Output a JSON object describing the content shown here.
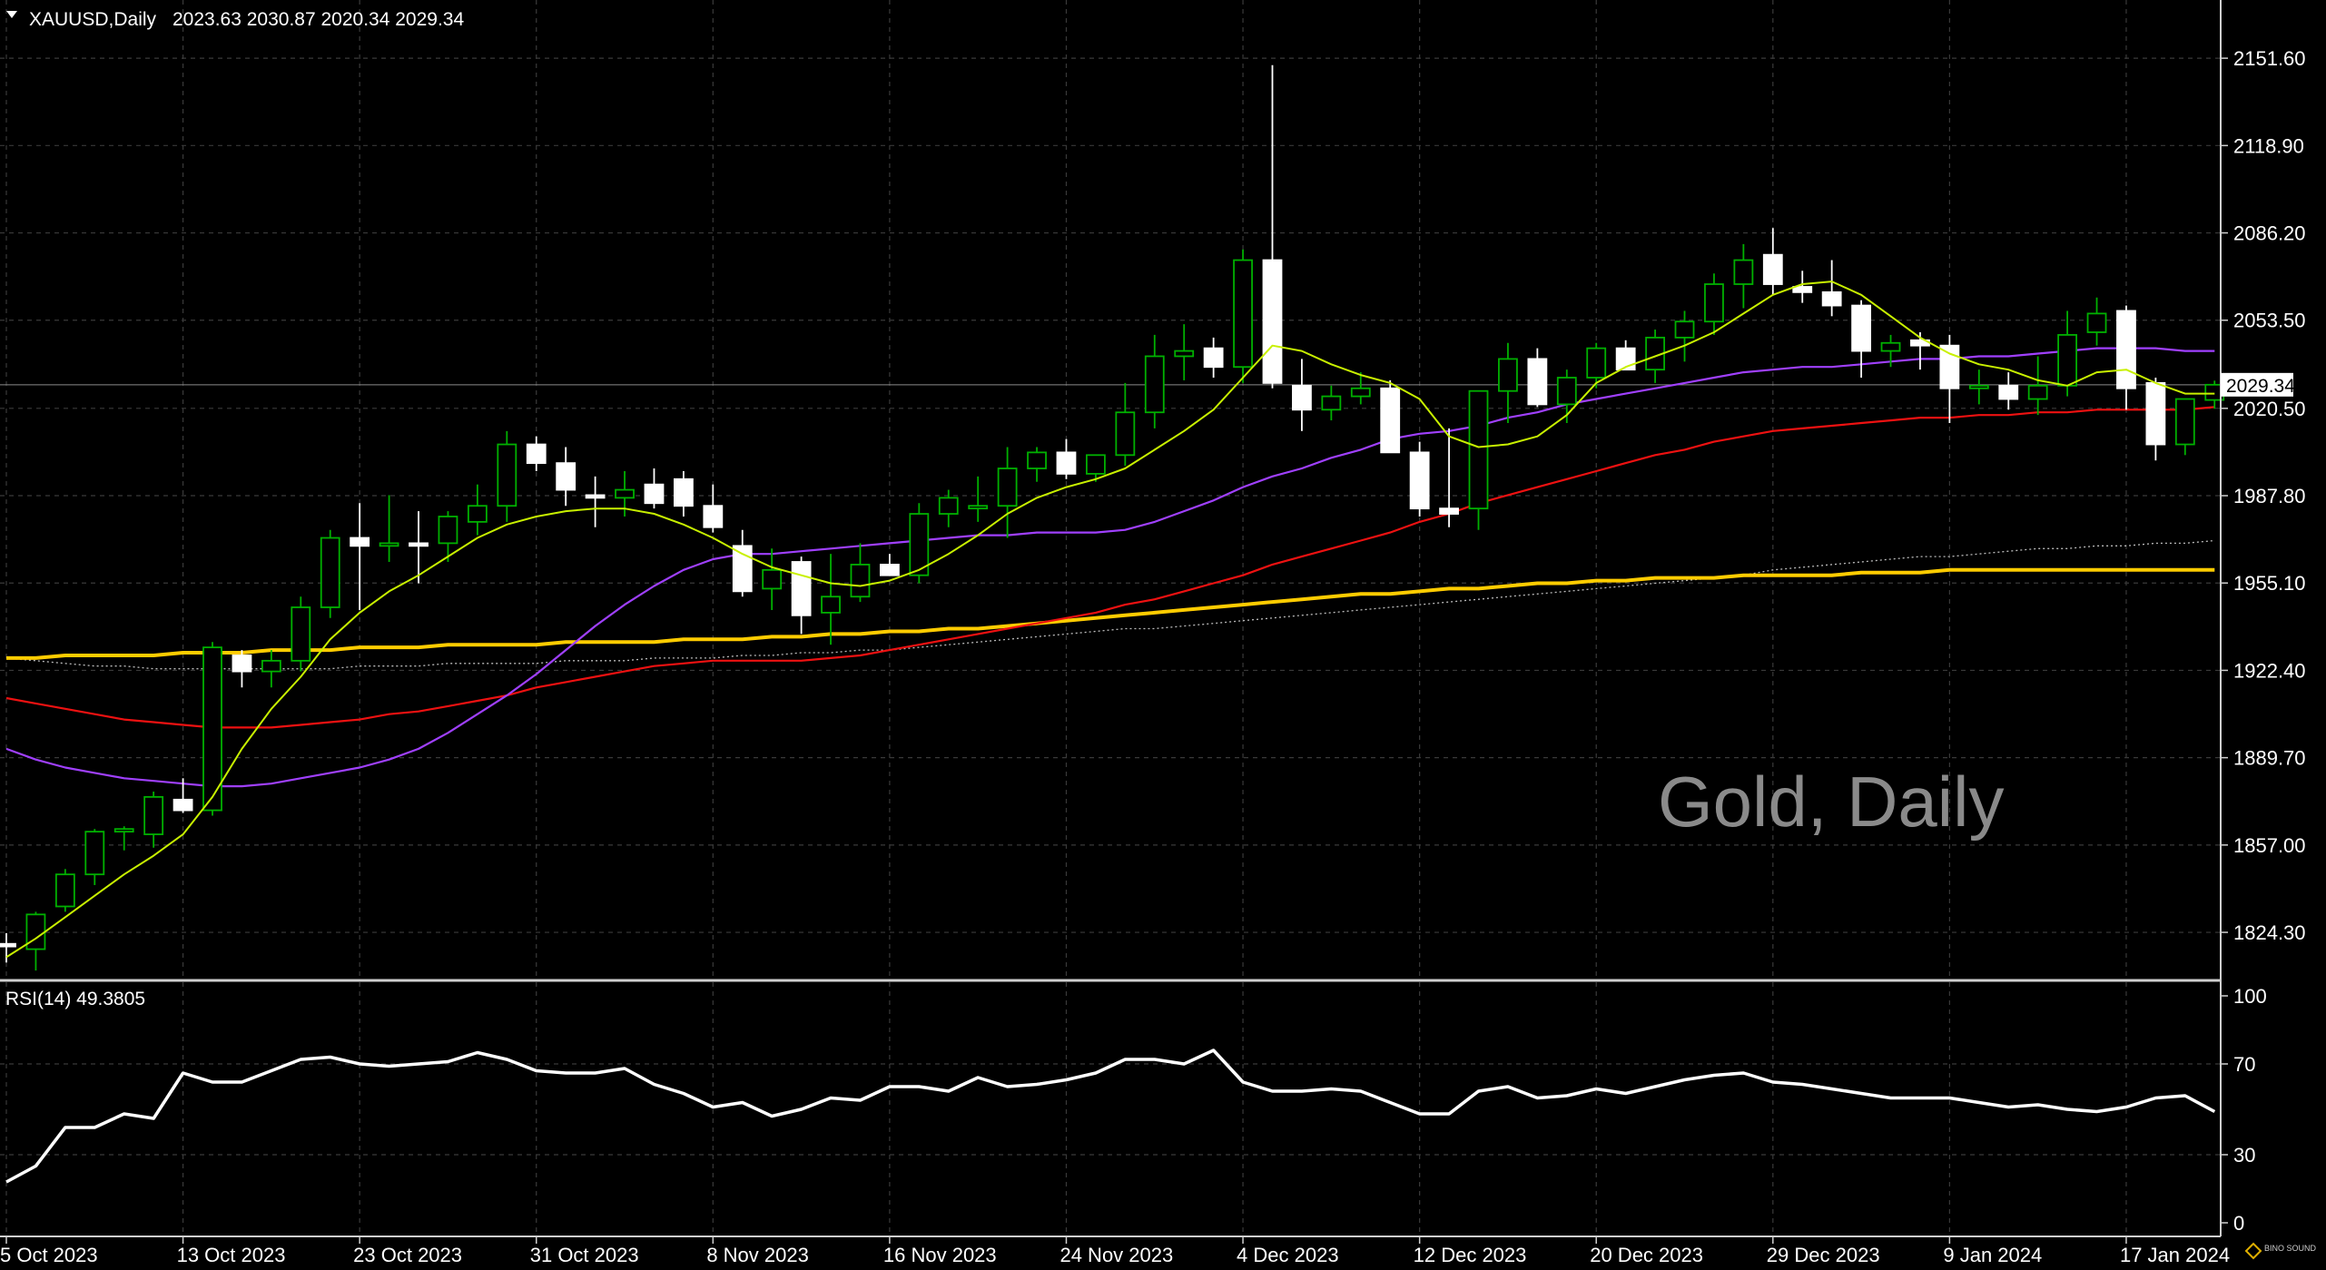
{
  "header": {
    "symbol": "XAUUSD,Daily",
    "ohlc": "2023.63 2030.87 2020.34 2029.34"
  },
  "watermark": "Gold, Daily",
  "last_price_label": "2029.34",
  "rsi_header": "RSI(14) 49.3805",
  "logo_text": "BINO SOUND",
  "colors": {
    "background": "#000000",
    "grid": "#3a3a3a",
    "bull_candle": "#00b000",
    "bear_candle": "#ffffff",
    "ma_fast": "#c8f000",
    "ma_mid": "#a040ff",
    "ma_slow": "#ee1111",
    "ma_200": "#ffcc00",
    "ma_dotted": "#bbbbbb",
    "rsi_line": "#ffffff"
  },
  "chart_data": [
    {
      "type": "candlestick",
      "symbol": "XAUUSD",
      "timeframe": "Daily",
      "price_ticks": [
        "2151.60",
        "2118.90",
        "2086.20",
        "2053.50",
        "2020.50",
        "1987.80",
        "1955.10",
        "1922.40",
        "1889.70",
        "1857.00",
        "1824.30"
      ],
      "ylim": [
        1808,
        2170
      ],
      "date_ticks": [
        {
          "label": "5 Oct 2023",
          "index": 0
        },
        {
          "label": "13 Oct 2023",
          "index": 6
        },
        {
          "label": "23 Oct 2023",
          "index": 12
        },
        {
          "label": "31 Oct 2023",
          "index": 18
        },
        {
          "label": "8 Nov 2023",
          "index": 24
        },
        {
          "label": "16 Nov 2023",
          "index": 30
        },
        {
          "label": "24 Nov 2023",
          "index": 36
        },
        {
          "label": "4 Dec 2023",
          "index": 42
        },
        {
          "label": "12 Dec 2023",
          "index": 48
        },
        {
          "label": "20 Dec 2023",
          "index": 54
        },
        {
          "label": "29 Dec 2023",
          "index": 60
        },
        {
          "label": "9 Jan 2024",
          "index": 66
        },
        {
          "label": "17 Jan 2024",
          "index": 72
        }
      ],
      "candles": [
        [
          1820,
          1824,
          1813,
          1819
        ],
        [
          1818,
          1832,
          1810,
          1831
        ],
        [
          1834,
          1848,
          1832,
          1846
        ],
        [
          1846,
          1863,
          1842,
          1862
        ],
        [
          1862,
          1864,
          1855,
          1863
        ],
        [
          1861,
          1877,
          1856,
          1875
        ],
        [
          1874,
          1882,
          1869,
          1870
        ],
        [
          1870,
          1933,
          1868,
          1931
        ],
        [
          1928,
          1930,
          1916,
          1922
        ],
        [
          1922,
          1930,
          1916,
          1926
        ],
        [
          1926,
          1950,
          1922,
          1946
        ],
        [
          1946,
          1975,
          1942,
          1972
        ],
        [
          1972,
          1985,
          1945,
          1969
        ],
        [
          1969,
          1988,
          1963,
          1970
        ],
        [
          1970,
          1982,
          1955,
          1969
        ],
        [
          1970,
          1982,
          1963,
          1980
        ],
        [
          1978,
          1992,
          1973,
          1984
        ],
        [
          1984,
          2012,
          1978,
          2007
        ],
        [
          2007,
          2010,
          1997,
          2000
        ],
        [
          2000,
          2006,
          1984,
          1990
        ],
        [
          1988,
          1995,
          1976,
          1987
        ],
        [
          1987,
          1997,
          1980,
          1990
        ],
        [
          1992,
          1998,
          1983,
          1985
        ],
        [
          1994,
          1997,
          1980,
          1984
        ],
        [
          1984,
          1992,
          1974,
          1976
        ],
        [
          1969,
          1975,
          1950,
          1952
        ],
        [
          1953,
          1968,
          1945,
          1960
        ],
        [
          1963,
          1965,
          1936,
          1943
        ],
        [
          1944,
          1966,
          1932,
          1950
        ],
        [
          1950,
          1970,
          1948,
          1962
        ],
        [
          1962,
          1966,
          1958,
          1958
        ],
        [
          1958,
          1985,
          1955,
          1981
        ],
        [
          1981,
          1990,
          1976,
          1987
        ],
        [
          1983,
          1995,
          1978,
          1984
        ],
        [
          1984,
          2006,
          1972,
          1998
        ],
        [
          1998,
          2006,
          1993,
          2004
        ],
        [
          2004,
          2009,
          1994,
          1996
        ],
        [
          1996,
          2003,
          1993,
          2003
        ],
        [
          2003,
          2030,
          1999,
          2019
        ],
        [
          2019,
          2048,
          2013,
          2040
        ],
        [
          2040,
          2052,
          2031,
          2042
        ],
        [
          2043,
          2047,
          2032,
          2036
        ],
        [
          2036,
          2080,
          2030,
          2076
        ],
        [
          2076,
          2149,
          2028,
          2030
        ],
        [
          2029,
          2039,
          2012,
          2020
        ],
        [
          2020,
          2029,
          2016,
          2025
        ],
        [
          2025,
          2034,
          2022,
          2028
        ],
        [
          2028,
          2031,
          2005,
          2004
        ],
        [
          2004,
          2008,
          1980,
          1983
        ],
        [
          1983,
          2013,
          1976,
          1981
        ],
        [
          1983,
          2027,
          1975,
          2027
        ],
        [
          2027,
          2045,
          2015,
          2039
        ],
        [
          2039,
          2043,
          2021,
          2022
        ],
        [
          2022,
          2035,
          2015,
          2032
        ],
        [
          2032,
          2045,
          2028,
          2043
        ],
        [
          2043,
          2046,
          2035,
          2035
        ],
        [
          2035,
          2050,
          2030,
          2047
        ],
        [
          2047,
          2057,
          2038,
          2053
        ],
        [
          2053,
          2071,
          2048,
          2067
        ],
        [
          2067,
          2082,
          2058,
          2076
        ],
        [
          2078,
          2088,
          2063,
          2067
        ],
        [
          2066,
          2072,
          2060,
          2064
        ],
        [
          2064,
          2076,
          2055,
          2059
        ],
        [
          2059,
          2061,
          2032,
          2042
        ],
        [
          2042,
          2048,
          2036,
          2045
        ],
        [
          2046,
          2049,
          2035,
          2044
        ],
        [
          2044,
          2048,
          2015,
          2028
        ],
        [
          2028,
          2035,
          2022,
          2029
        ],
        [
          2029,
          2034,
          2020,
          2024
        ],
        [
          2024,
          2040,
          2018,
          2029
        ],
        [
          2029,
          2057,
          2025,
          2048
        ],
        [
          2049,
          2062,
          2044,
          2056
        ],
        [
          2057,
          2059,
          2020,
          2028
        ],
        [
          2030,
          2032,
          2001,
          2007
        ],
        [
          2007,
          2024,
          2003,
          2024
        ],
        [
          2023.63,
          2030.87,
          2020.34,
          2029.34
        ]
      ],
      "moving_averages": {
        "fast": [
          1815,
          1822,
          1830,
          1838,
          1846,
          1853,
          1861,
          1875,
          1893,
          1908,
          1920,
          1934,
          1944,
          1952,
          1958,
          1965,
          1972,
          1977,
          1980,
          1982,
          1983,
          1983,
          1981,
          1977,
          1972,
          1966,
          1961,
          1958,
          1955,
          1954,
          1956,
          1960,
          1966,
          1973,
          1981,
          1987,
          1991,
          1994,
          1998,
          2005,
          2012,
          2020,
          2032,
          2044,
          2042,
          2037,
          2033,
          2030,
          2024,
          2010,
          2006,
          2007,
          2010,
          2018,
          2030,
          2036,
          2040,
          2044,
          2049,
          2056,
          2063,
          2067,
          2068,
          2063,
          2055,
          2047,
          2041,
          2037,
          2035,
          2031,
          2029,
          2034,
          2035,
          2030,
          2026,
          2026
        ],
        "mid": [
          1893,
          1889,
          1886,
          1884,
          1882,
          1881,
          1880,
          1879,
          1879,
          1880,
          1882,
          1884,
          1886,
          1889,
          1893,
          1899,
          1906,
          1913,
          1921,
          1930,
          1939,
          1947,
          1954,
          1960,
          1964,
          1966,
          1966,
          1967,
          1968,
          1969,
          1970,
          1971,
          1972,
          1973,
          1973,
          1974,
          1974,
          1974,
          1975,
          1978,
          1982,
          1986,
          1991,
          1995,
          1998,
          2002,
          2005,
          2009,
          2011,
          2012,
          2014,
          2017,
          2019,
          2022,
          2024,
          2026,
          2028,
          2030,
          2032,
          2034,
          2035,
          2036,
          2036,
          2037,
          2038,
          2039,
          2039,
          2040,
          2040,
          2041,
          2042,
          2043,
          2043,
          2043,
          2042,
          2042
        ],
        "slow": [
          1912,
          1910,
          1908,
          1906,
          1904,
          1903,
          1902,
          1901,
          1901,
          1901,
          1902,
          1903,
          1904,
          1906,
          1907,
          1909,
          1911,
          1913,
          1916,
          1918,
          1920,
          1922,
          1924,
          1925,
          1926,
          1926,
          1926,
          1926,
          1927,
          1928,
          1930,
          1932,
          1934,
          1936,
          1938,
          1940,
          1942,
          1944,
          1947,
          1949,
          1952,
          1955,
          1958,
          1962,
          1965,
          1968,
          1971,
          1974,
          1978,
          1981,
          1985,
          1988,
          1991,
          1994,
          1997,
          2000,
          2003,
          2005,
          2008,
          2010,
          2012,
          2013,
          2014,
          2015,
          2016,
          2017,
          2017,
          2018,
          2018,
          2019,
          2019,
          2020,
          2020,
          2020,
          2020,
          2021
        ],
        "ma200": [
          1927,
          1927,
          1928,
          1928,
          1928,
          1928,
          1929,
          1929,
          1929,
          1930,
          1930,
          1930,
          1931,
          1931,
          1931,
          1932,
          1932,
          1932,
          1932,
          1933,
          1933,
          1933,
          1933,
          1934,
          1934,
          1934,
          1935,
          1935,
          1936,
          1936,
          1937,
          1937,
          1938,
          1938,
          1939,
          1940,
          1941,
          1942,
          1943,
          1944,
          1945,
          1946,
          1947,
          1948,
          1949,
          1950,
          1951,
          1951,
          1952,
          1953,
          1953,
          1954,
          1955,
          1955,
          1956,
          1956,
          1957,
          1957,
          1957,
          1958,
          1958,
          1958,
          1958,
          1959,
          1959,
          1959,
          1960,
          1960,
          1960,
          1960,
          1960,
          1960,
          1960,
          1960,
          1960,
          1960
        ],
        "dotted": [
          1927,
          1926,
          1925,
          1924,
          1924,
          1923,
          1923,
          1923,
          1923,
          1923,
          1923,
          1923,
          1924,
          1924,
          1924,
          1925,
          1925,
          1925,
          1925,
          1926,
          1926,
          1926,
          1927,
          1927,
          1927,
          1928,
          1928,
          1929,
          1929,
          1930,
          1930,
          1931,
          1932,
          1933,
          1934,
          1935,
          1936,
          1937,
          1938,
          1938,
          1939,
          1940,
          1941,
          1942,
          1943,
          1944,
          1945,
          1946,
          1947,
          1948,
          1949,
          1950,
          1951,
          1952,
          1953,
          1954,
          1955,
          1956,
          1957,
          1958,
          1960,
          1961,
          1962,
          1963,
          1964,
          1965,
          1965,
          1966,
          1967,
          1968,
          1968,
          1969,
          1969,
          1970,
          1970,
          1971
        ]
      }
    },
    {
      "type": "line",
      "name": "RSI(14)",
      "ylim": [
        0,
        100
      ],
      "ticks": [
        "100",
        "70",
        "30",
        "0"
      ],
      "tick_values": [
        100,
        70,
        30,
        0
      ],
      "values": [
        18,
        25,
        42,
        42,
        48,
        46,
        66,
        62,
        62,
        67,
        72,
        73,
        70,
        69,
        70,
        71,
        75,
        72,
        67,
        66,
        66,
        68,
        61,
        57,
        51,
        53,
        47,
        50,
        55,
        54,
        60,
        60,
        58,
        64,
        60,
        61,
        63,
        66,
        72,
        72,
        70,
        76,
        62,
        58,
        58,
        59,
        58,
        53,
        48,
        48,
        58,
        60,
        55,
        56,
        59,
        57,
        60,
        63,
        65,
        66,
        62,
        61,
        59,
        57,
        55,
        55,
        55,
        53,
        51,
        52,
        50,
        49,
        51,
        55,
        56,
        49
      ]
    }
  ]
}
